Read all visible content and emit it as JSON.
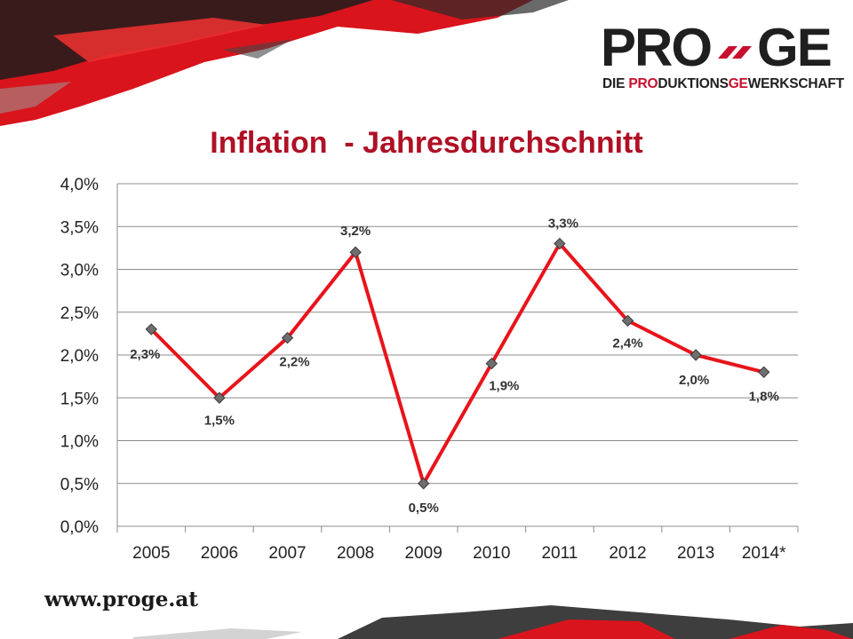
{
  "slide": {
    "title": "Inflation  - Jahresdurchschnitt",
    "website": "www.proge.at"
  },
  "logo": {
    "wordmark_left": "PRO",
    "wordmark_right": "GE",
    "tagline_parts": [
      "DIE ",
      "PRO",
      "DUKTIONS",
      "GE",
      "WERKSCHAFT"
    ]
  },
  "colors": {
    "line": "#e8141b",
    "marker": "#6e6e6e",
    "title": "#b01025",
    "brand_red": "#c8102e",
    "grid": "#8c8c8c"
  },
  "chart_data": {
    "type": "line",
    "categories": [
      "2005",
      "2006",
      "2007",
      "2008",
      "2009",
      "2010",
      "2011",
      "2012",
      "2013",
      "2014*"
    ],
    "series": [
      {
        "values": [
          2.3,
          1.5,
          2.2,
          3.2,
          0.5,
          1.9,
          3.3,
          2.4,
          2.0,
          1.8
        ],
        "data_labels": [
          "2,3%",
          "1,5%",
          "2,2%",
          "3,2%",
          "0,5%",
          "1,9%",
          "3,3%",
          "2,4%",
          "2,0%",
          "1,8%"
        ]
      }
    ],
    "ylim": [
      0,
      4.0
    ],
    "yticks": [
      0,
      0.5,
      1.0,
      1.5,
      2.0,
      2.5,
      3.0,
      3.5,
      4.0
    ],
    "ytick_labels": [
      "0,0%",
      "0,5%",
      "1,0%",
      "1,5%",
      "2,0%",
      "2,5%",
      "3,0%",
      "3,5%",
      "4,0%"
    ],
    "grid": true,
    "legend": "none",
    "xlabel": "",
    "ylabel": ""
  }
}
